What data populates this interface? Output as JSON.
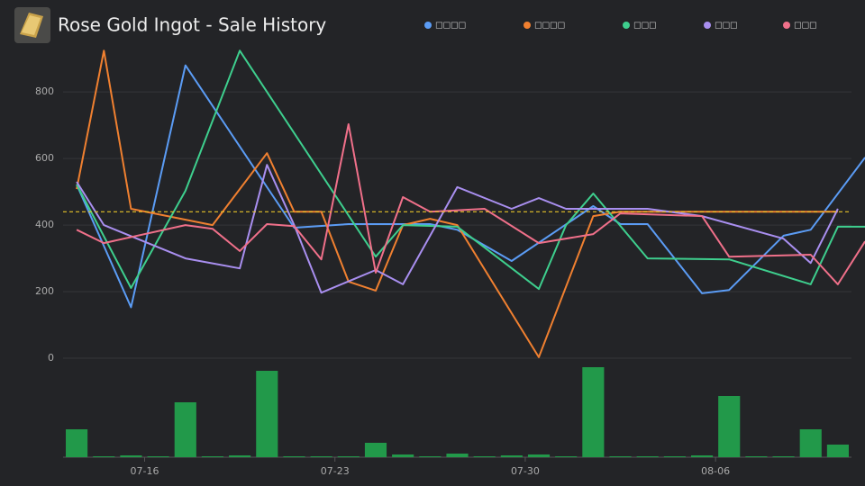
{
  "chart_data": {
    "type": "line",
    "title": "Rose Gold Ingot - Sale History",
    "xlim": [
      "07-13",
      "08-11"
    ],
    "xticks": [
      "07-16",
      "07-23",
      "07-30",
      "08-06"
    ],
    "ylim": [
      0,
      960
    ],
    "yticks": [
      0,
      200,
      400,
      600,
      800
    ],
    "grid": true,
    "average": {
      "value": 440,
      "color": "#e6c229"
    },
    "series": [
      {
        "name": "□□□□",
        "color": "#5b9cf5",
        "x": [
          "07-13",
          "07-15",
          "07-17",
          "07-21",
          "07-23",
          "07-26",
          "07-27",
          "07-29",
          "08-01",
          "08-02",
          "08-03",
          "08-05",
          "08-06",
          "08-08",
          "08-09",
          "08-11"
        ],
        "values": [
          522,
          153,
          880,
          392,
          403,
          403,
          386,
          292,
          457,
          403,
          403,
          195,
          205,
          368,
          386,
          603
        ]
      },
      {
        "name": "□□□□",
        "color": "#f08030",
        "x": [
          "07-13",
          "07-14",
          "07-15",
          "07-18",
          "07-20",
          "07-21",
          "07-22",
          "07-23",
          "07-24",
          "07-25",
          "07-26",
          "07-27",
          "07-30",
          "08-01",
          "08-02",
          "08-10"
        ],
        "values": [
          508,
          924,
          449,
          400,
          616,
          440,
          440,
          230,
          203,
          400,
          419,
          400,
          3,
          427,
          440,
          440
        ]
      },
      {
        "name": "□□□",
        "color": "#3ecf8e",
        "x": [
          "07-13",
          "07-15",
          "07-17",
          "07-19",
          "07-24",
          "07-25",
          "07-27",
          "07-30",
          "07-31",
          "08-01",
          "08-03",
          "08-06",
          "08-09",
          "08-10",
          "08-11"
        ],
        "values": [
          522,
          211,
          503,
          924,
          305,
          400,
          395,
          208,
          400,
          495,
          300,
          297,
          222,
          395,
          395
        ]
      },
      {
        "name": "□□□",
        "color": "#a98ff0",
        "x": [
          "07-13",
          "07-14",
          "07-17",
          "07-19",
          "07-20",
          "07-21",
          "07-22",
          "07-24",
          "07-25",
          "07-27",
          "07-29",
          "07-30",
          "07-31",
          "08-03",
          "08-05",
          "08-08",
          "08-09",
          "08-10"
        ],
        "values": [
          530,
          400,
          300,
          270,
          581,
          400,
          197,
          265,
          222,
          514,
          449,
          481,
          449,
          449,
          427,
          359,
          286,
          449
        ]
      },
      {
        "name": "□□□",
        "color": "#f0708a",
        "x": [
          "07-13",
          "07-14",
          "07-17",
          "07-18",
          "07-19",
          "07-20",
          "07-21",
          "07-22",
          "07-23",
          "07-24",
          "07-25",
          "07-26",
          "07-28",
          "07-30",
          "08-01",
          "08-02",
          "08-05",
          "08-06",
          "08-09",
          "08-10",
          "08-11"
        ],
        "values": [
          386,
          346,
          400,
          389,
          322,
          403,
          397,
          297,
          703,
          257,
          484,
          440,
          449,
          346,
          373,
          435,
          427,
          305,
          311,
          222,
          351
        ]
      }
    ],
    "volume": {
      "color": "#22994a",
      "ylim": [
        0,
        100
      ],
      "x": [
        "07-13",
        "07-14",
        "07-15",
        "07-16",
        "07-17",
        "07-18",
        "07-19",
        "07-20",
        "07-21",
        "07-22",
        "07-23",
        "07-24",
        "07-25",
        "07-26",
        "07-27",
        "07-28",
        "07-29",
        "07-30",
        "07-31",
        "08-01",
        "08-02",
        "08-03",
        "08-04",
        "08-05",
        "08-06",
        "08-07",
        "08-08",
        "08-09",
        "08-10"
      ],
      "values": [
        31,
        1,
        2,
        0,
        61,
        1,
        2,
        96,
        1,
        1,
        1,
        16,
        3,
        1,
        4,
        1,
        2,
        3,
        1,
        100,
        1,
        1,
        1,
        2,
        68,
        0,
        1,
        31,
        14
      ]
    }
  }
}
